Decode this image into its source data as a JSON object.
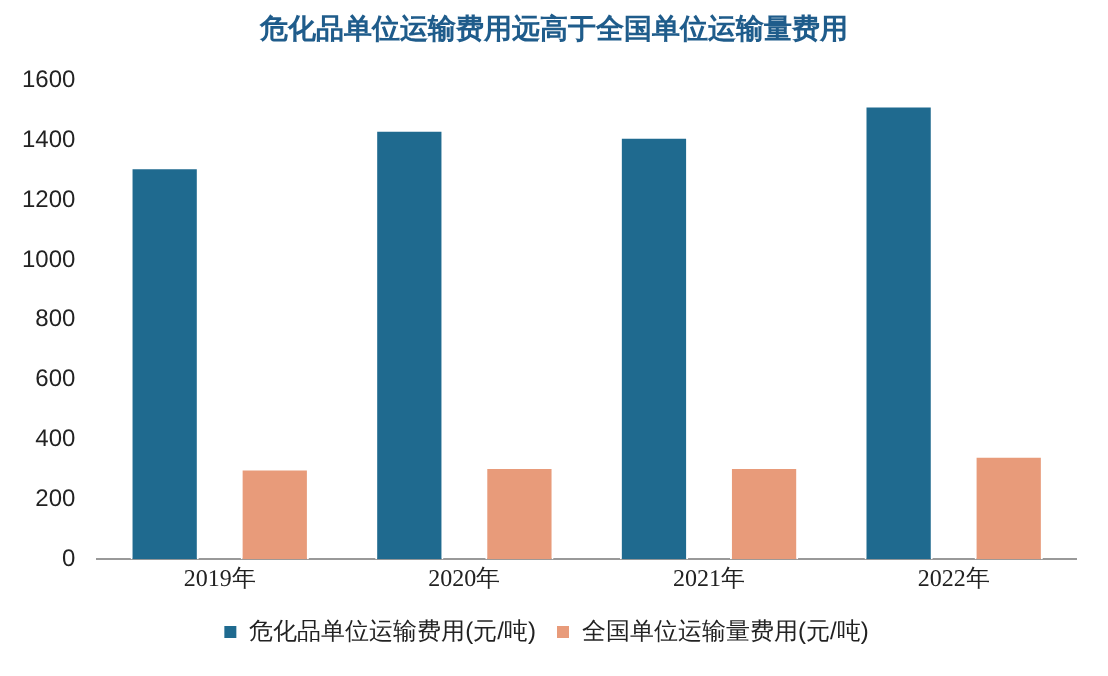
{
  "chart_data": {
    "type": "bar",
    "title": "危化品单位运输费用远高于全国单位运输量费用",
    "categories": [
      "2019年",
      "2020年",
      "2021年",
      "2022年"
    ],
    "series": [
      {
        "name": "危化品单位运输费用(元/吨)",
        "color": "#1f6a8f",
        "values": [
          1310,
          1435,
          1412,
          1516
        ]
      },
      {
        "name": "全国单位运输量费用(元/吨)",
        "color": "#e89b7a",
        "values": [
          303,
          308,
          308,
          346
        ]
      }
    ],
    "ylim": [
      0,
      1600
    ],
    "yticks": [
      0,
      200,
      400,
      600,
      800,
      1000,
      1200,
      1400,
      1600
    ],
    "grid": false,
    "legend": "bottom"
  }
}
